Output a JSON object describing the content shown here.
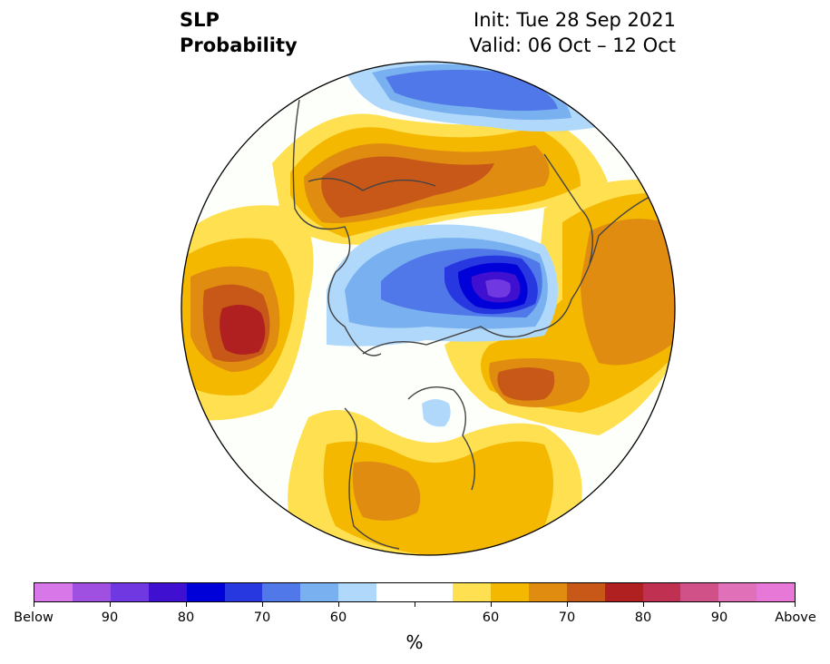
{
  "title": {
    "left_line1": "SLP",
    "left_line2": "Probability",
    "right_line1": "Init: Tue 28 Sep 2021",
    "right_line2": "Valid: 06 Oct – 12 Oct"
  },
  "colorbar": {
    "unit": "%",
    "colors": [
      "#d878e8",
      "#a050e0",
      "#7038e0",
      "#4010d0",
      "#0000d8",
      "#2838e0",
      "#5078e8",
      "#78b0f0",
      "#b0d8fa",
      "#ffffff",
      "#ffffff",
      "#ffe050",
      "#f4b800",
      "#e08c10",
      "#c85818",
      "#b02020",
      "#c03050",
      "#d05088",
      "#e070b8",
      "#e878d8"
    ],
    "labels": [
      "Below",
      "90",
      "80",
      "70",
      "60",
      "60",
      "70",
      "80",
      "90",
      "Above"
    ]
  },
  "map": {
    "projection": "north-polar-stereographic",
    "variable": "SLP",
    "regions": [
      {
        "name": "north-pacific-high",
        "category": "above",
        "level": "80"
      },
      {
        "name": "eurasia-siberia-high",
        "category": "above",
        "level": "70"
      },
      {
        "name": "europe-high",
        "category": "above",
        "level": "60-70"
      },
      {
        "name": "north-atlantic-high",
        "category": "above",
        "level": "70"
      },
      {
        "name": "eastern-us-high",
        "category": "above",
        "level": "60-70"
      },
      {
        "name": "arctic-low",
        "category": "below",
        "level": "80"
      },
      {
        "name": "hudson-bay-low",
        "category": "below",
        "level": "60"
      },
      {
        "name": "scandinavia-north-low",
        "category": "below",
        "level": "70"
      }
    ]
  }
}
